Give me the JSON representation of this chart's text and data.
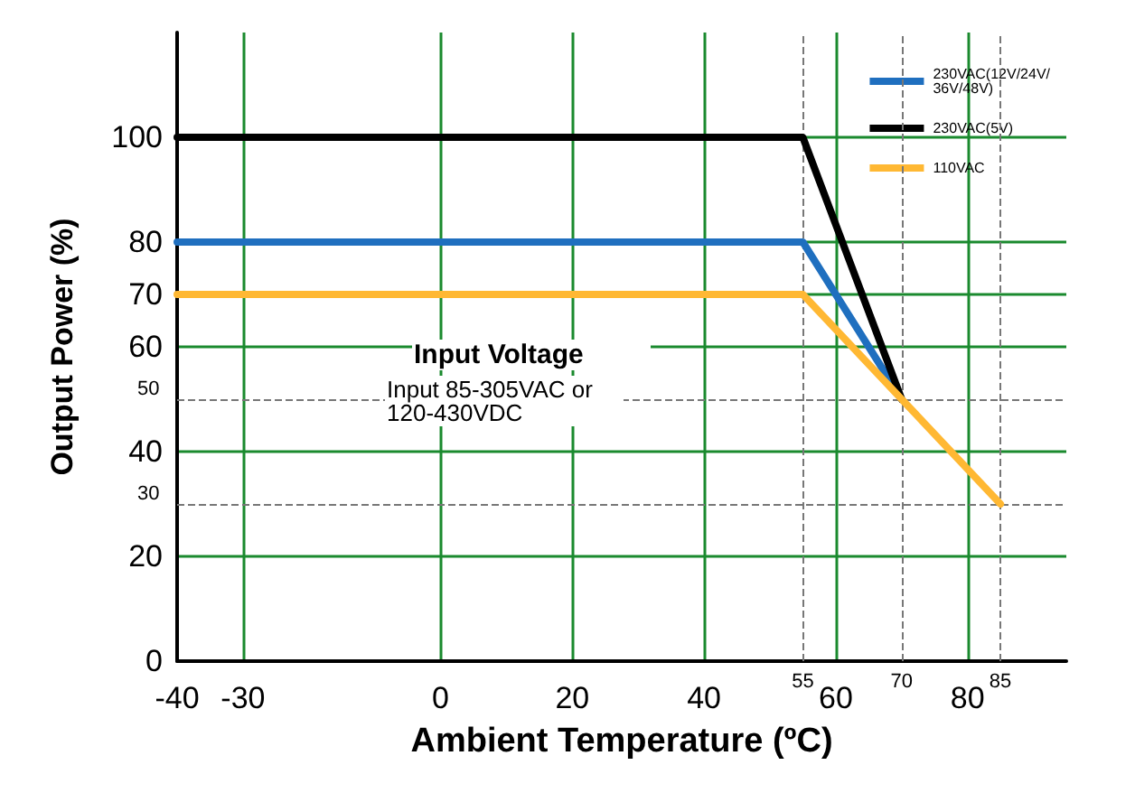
{
  "chart_data": {
    "type": "line",
    "xlabel": "Ambient Temperature (ºC)",
    "ylabel": "Output Power (%)",
    "xlim": [
      -40,
      95
    ],
    "xticks": [
      -40,
      -30,
      0,
      20,
      40,
      60,
      80
    ],
    "ylim": [
      0,
      120
    ],
    "yticks": [
      0,
      20,
      40,
      60,
      70,
      80,
      100
    ],
    "grid": true,
    "legend": "top right",
    "marker": "none",
    "line_style": "solid",
    "series": [
      {
        "name": "230VAC(12V/24V/36V/48V)",
        "color": "#1f6fbf",
        "x": [
          -40,
          55,
          70
        ],
        "values": [
          80,
          80,
          50
        ]
      },
      {
        "name": "230VAC(5V)",
        "color": "#000000",
        "x": [
          -40,
          55,
          70
        ],
        "values": [
          100,
          100,
          50
        ]
      },
      {
        "name": "110VAC",
        "color": "#ffb833",
        "x": [
          -40,
          55,
          70,
          85
        ],
        "values": [
          70,
          70,
          50,
          30
        ]
      }
    ],
    "ref_lines": [
      {
        "axis": "y",
        "value": 50,
        "label": "50",
        "line_style": "dashed",
        "color": "#777777"
      },
      {
        "axis": "y",
        "value": 30,
        "label": "30",
        "line_style": "dashed",
        "color": "#777777"
      },
      {
        "axis": "x",
        "value": 55,
        "label": "55",
        "line_style": "dashed",
        "color": "#777777"
      },
      {
        "axis": "x",
        "value": 70,
        "label": "70",
        "line_style": "dashed",
        "color": "#777777"
      },
      {
        "axis": "x",
        "value": 85,
        "label": "85",
        "line_style": "dashed",
        "color": "#777777"
      }
    ],
    "annotations": [
      "Input Voltage",
      "Input 85-305VAC or 120-430VDC"
    ]
  }
}
